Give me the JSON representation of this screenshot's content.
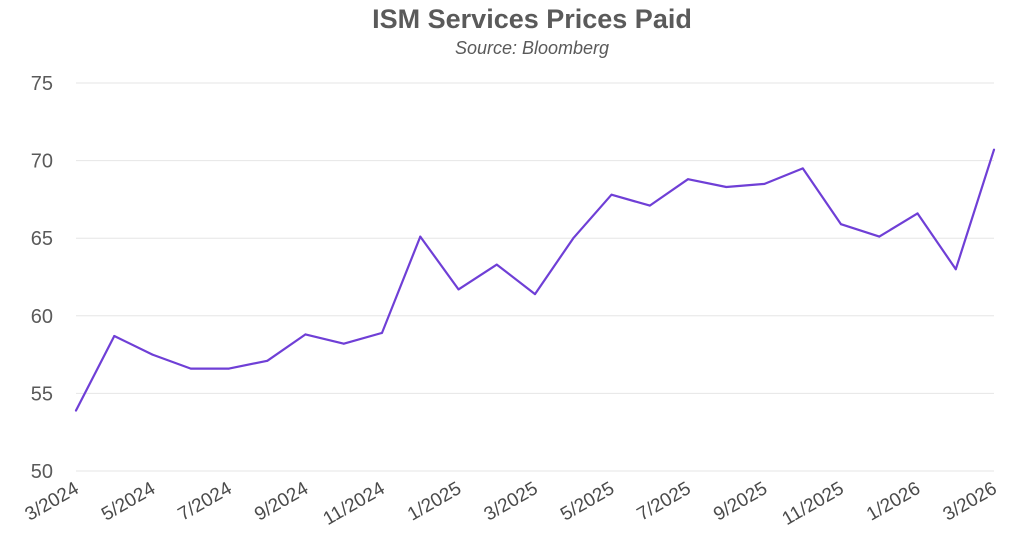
{
  "chart_data": {
    "type": "line",
    "title": "ISM Services Prices Paid",
    "subtitle": "Source: Bloomberg",
    "xlabel": "",
    "ylabel": "",
    "ylim": [
      50,
      75
    ],
    "yticks": [
      50,
      55,
      60,
      65,
      70,
      75
    ],
    "grid": true,
    "legend": "none",
    "x": [
      "3/2024",
      "4/2024",
      "5/2024",
      "6/2024",
      "7/2024",
      "8/2024",
      "9/2024",
      "10/2024",
      "11/2024",
      "12/2024",
      "1/2025",
      "2/2025",
      "3/2025",
      "4/2025",
      "5/2025",
      "6/2025",
      "7/2025",
      "8/2025",
      "9/2025",
      "10/2025",
      "11/2025",
      "12/2025",
      "1/2026",
      "2/2026",
      "3/2026"
    ],
    "xtick_labels": [
      "3/2024",
      "5/2024",
      "7/2024",
      "9/2024",
      "11/2024",
      "1/2025",
      "3/2025",
      "5/2025",
      "7/2025",
      "9/2025",
      "11/2025",
      "1/2026",
      "3/2026"
    ],
    "series": [
      {
        "name": "ISM Services Prices Paid",
        "color": "#6f3fd6",
        "values": [
          53.9,
          58.7,
          57.5,
          56.6,
          56.6,
          57.1,
          58.8,
          58.2,
          58.9,
          65.1,
          61.7,
          63.3,
          61.4,
          65.0,
          67.8,
          67.1,
          68.8,
          68.3,
          68.5,
          69.5,
          65.9,
          65.1,
          66.6,
          63.0,
          70.7
        ]
      }
    ]
  }
}
